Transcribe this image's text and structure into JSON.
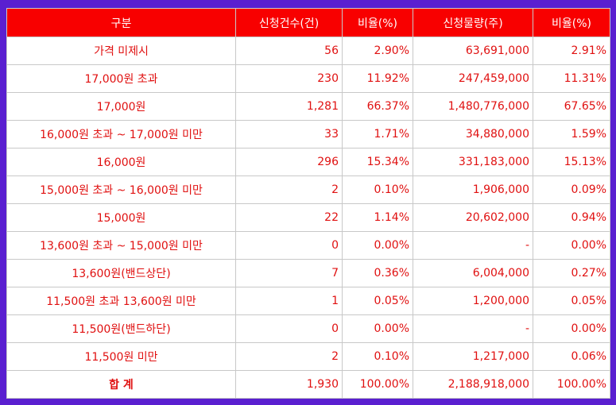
{
  "headers": [
    "구분",
    "신청건수(건)",
    "비율(%)",
    "신청물량(주)",
    "비율(%)"
  ],
  "rows": [
    {
      "label": "가격 미제시",
      "count": "56",
      "count_ratio": "2.90%",
      "volume": "63,691,000",
      "volume_ratio": "2.91%"
    },
    {
      "label": "17,000원 초과",
      "count": "230",
      "count_ratio": "11.92%",
      "volume": "247,459,000",
      "volume_ratio": "11.31%"
    },
    {
      "label": "17,000원",
      "count": "1,281",
      "count_ratio": "66.37%",
      "volume": "1,480,776,000",
      "volume_ratio": "67.65%"
    },
    {
      "label": "16,000원 초과 ~ 17,000원 미만",
      "count": "33",
      "count_ratio": "1.71%",
      "volume": "34,880,000",
      "volume_ratio": "1.59%"
    },
    {
      "label": "16,000원",
      "count": "296",
      "count_ratio": "15.34%",
      "volume": "331,183,000",
      "volume_ratio": "15.13%"
    },
    {
      "label": "15,000원 초과 ~ 16,000원 미만",
      "count": "2",
      "count_ratio": "0.10%",
      "volume": "1,906,000",
      "volume_ratio": "0.09%"
    },
    {
      "label": "15,000원",
      "count": "22",
      "count_ratio": "1.14%",
      "volume": "20,602,000",
      "volume_ratio": "0.94%"
    },
    {
      "label": "13,600원 초과 ~ 15,000원 미만",
      "count": "0",
      "count_ratio": "0.00%",
      "volume": "-",
      "volume_ratio": "0.00%"
    },
    {
      "label": "13,600원(밴드상단)",
      "count": "7",
      "count_ratio": "0.36%",
      "volume": "6,004,000",
      "volume_ratio": "0.27%"
    },
    {
      "label": "11,500원 초과 13,600원 미만",
      "count": "1",
      "count_ratio": "0.05%",
      "volume": "1,200,000",
      "volume_ratio": "0.05%"
    },
    {
      "label": "11,500원(밴드하단)",
      "count": "0",
      "count_ratio": "0.00%",
      "volume": "-",
      "volume_ratio": "0.00%"
    },
    {
      "label": "11,500원 미만",
      "count": "2",
      "count_ratio": "0.10%",
      "volume": "1,217,000",
      "volume_ratio": "0.06%"
    }
  ],
  "total": {
    "label": "합 계",
    "count": "1,930",
    "count_ratio": "100.00%",
    "volume": "2,188,918,000",
    "volume_ratio": "100.00%"
  },
  "colors": {
    "border_frame": "#5a1fd0",
    "header_bg": "#f80000",
    "text": "#e01010"
  }
}
